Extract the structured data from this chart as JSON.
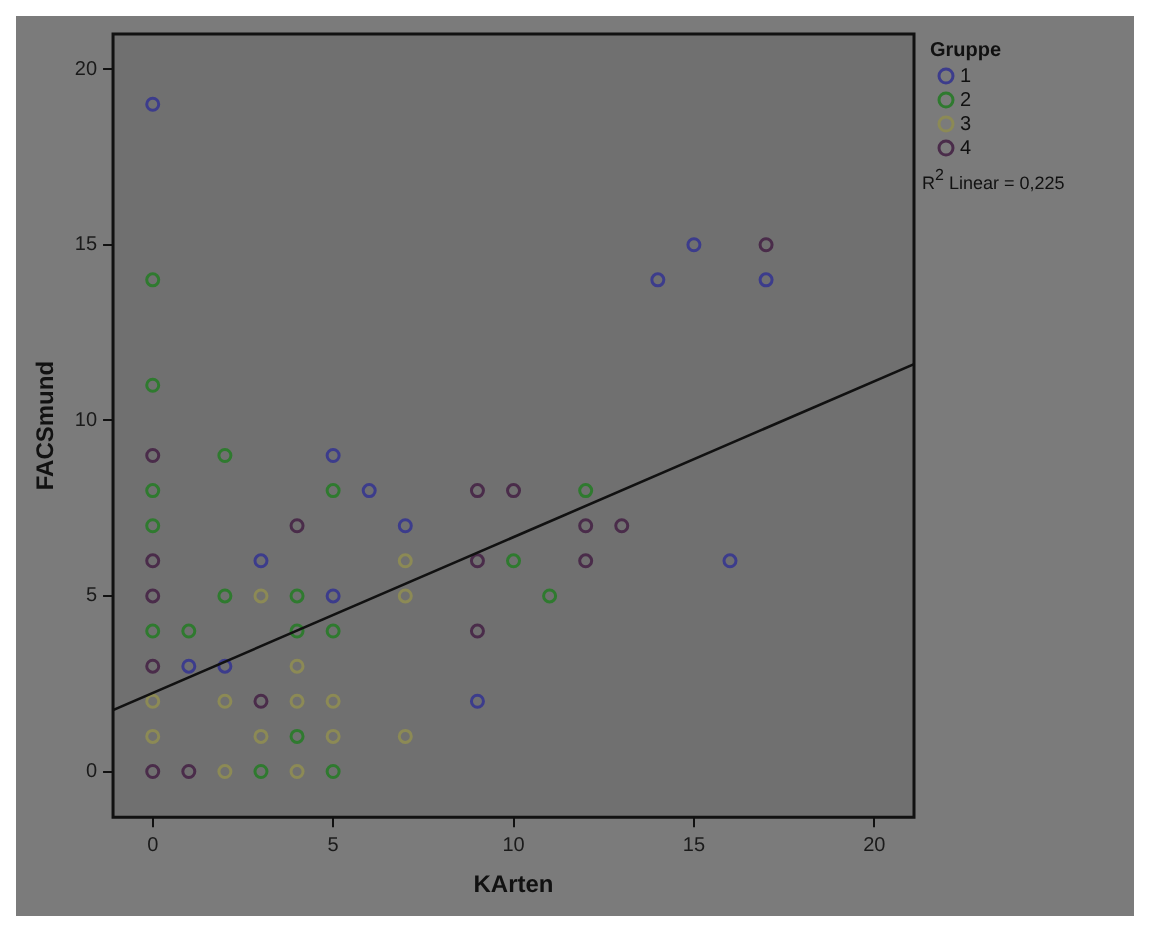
{
  "chart_data": {
    "type": "scatter",
    "xlabel": "KArten",
    "ylabel": "FACSmund",
    "legend_title": "Gruppe",
    "xlim": [
      -1.1,
      21.1
    ],
    "ylim": [
      -1.3,
      21
    ],
    "xticks": [
      0,
      5,
      10,
      15,
      20
    ],
    "yticks": [
      0,
      5,
      10,
      15,
      20
    ],
    "grid": false,
    "legend": "top right",
    "marker": "circle",
    "annotations": [
      "R$^{2}$ Linear = 0,225"
    ],
    "series": [
      {
        "name": "1",
        "color": "#3c3c8c",
        "x": [
          0,
          5,
          6,
          7,
          3,
          5,
          1,
          2,
          9,
          15,
          14,
          17,
          16
        ],
        "values": [
          19,
          9,
          8,
          7,
          6,
          5,
          3,
          3,
          2,
          15,
          14,
          14,
          6
        ]
      },
      {
        "name": "2",
        "color": "#2f7a2f",
        "x": [
          0,
          0,
          0,
          2,
          5,
          0,
          10,
          2,
          4,
          0,
          1,
          4,
          5,
          4,
          3,
          5,
          12,
          11
        ],
        "values": [
          14,
          11,
          8,
          9,
          8,
          7,
          6,
          5,
          5,
          4,
          4,
          4,
          4,
          1,
          0,
          0,
          8,
          5
        ]
      },
      {
        "name": "3",
        "color": "#8c8a55",
        "x": [
          7,
          3,
          7,
          4,
          0,
          2,
          4,
          5,
          0,
          3,
          5,
          7,
          2,
          4
        ],
        "values": [
          6,
          5,
          5,
          3,
          2,
          2,
          2,
          2,
          1,
          1,
          1,
          1,
          0,
          0
        ]
      },
      {
        "name": "4",
        "color": "#4a2c4a",
        "x": [
          0,
          9,
          10,
          4,
          0,
          9,
          0,
          9,
          0,
          3,
          0,
          1,
          17,
          12,
          13,
          12
        ],
        "values": [
          9,
          8,
          8,
          7,
          6,
          6,
          5,
          4,
          3,
          2,
          0,
          0,
          15,
          7,
          7,
          6
        ]
      },
      {
        "type": "line",
        "marker": "none",
        "color": "#111111",
        "x": [
          -1.1,
          21.1
        ],
        "values": [
          1.75,
          11.6
        ]
      }
    ]
  }
}
